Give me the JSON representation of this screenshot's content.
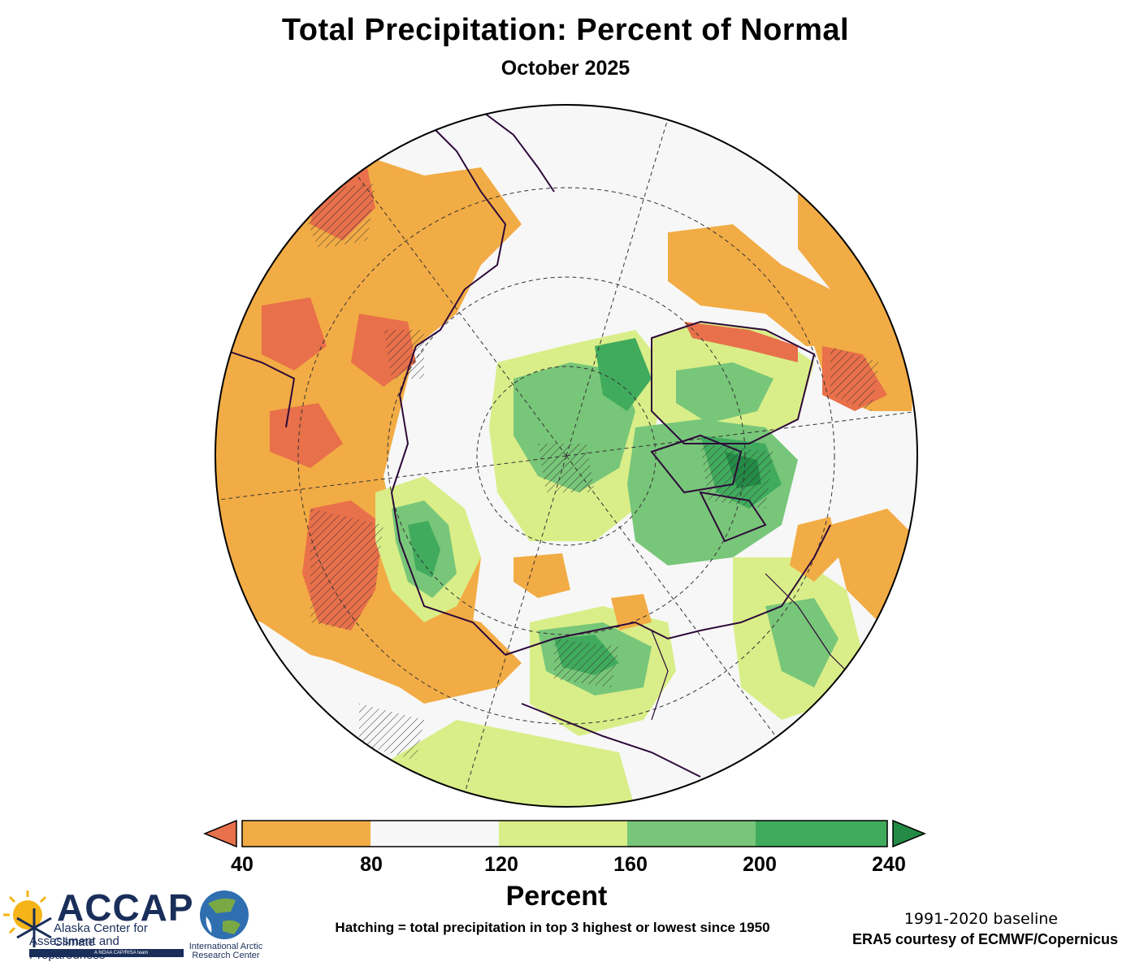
{
  "title": "Total Precipitation: Percent of Normal",
  "subtitle": "October 2025",
  "colorbar": {
    "ticks": [
      "40",
      "80",
      "120",
      "160",
      "200",
      "240"
    ],
    "label": "Percent",
    "bins": [
      {
        "range": "40-80",
        "color": "#f2ac45"
      },
      {
        "range": "80-120",
        "color": "#f7f7f7"
      },
      {
        "range": "120-160",
        "color": "#d9ee88"
      },
      {
        "range": "160-200",
        "color": "#78c679"
      },
      {
        "range": "200-240",
        "color": "#41ab5d"
      }
    ],
    "under_color": "#e8704a",
    "over_color": "#238b45"
  },
  "notes": {
    "hatching": "Hatching = total precipitation in top 3 highest or lowest since 1950",
    "baseline": "1991-2020 baseline",
    "source": "ERA5 courtesy of ECMWF/Copernicus"
  },
  "logos": {
    "accap_name": "ACCAP",
    "accap_line1": "Alaska Center for Climate",
    "accap_line2": "Assessment and Preparedness",
    "accap_tag": "A NOAA CAP/RISA team",
    "iarc_line1": "International Arctic",
    "iarc_line2": "Research Center"
  },
  "map": {
    "projection": "north-polar-stereographic",
    "regions": [
      {
        "name": "Europe / Scandinavia",
        "category": "40-80"
      },
      {
        "name": "Western Russia",
        "category": "40-80"
      },
      {
        "name": "Western Siberia",
        "category": "below-40"
      },
      {
        "name": "Central Siberia",
        "category": "160-200"
      },
      {
        "name": "North Atlantic",
        "category": "80-120"
      },
      {
        "name": "Greenland interior",
        "category": "120-160"
      },
      {
        "name": "Southeast Greenland",
        "category": "40-80"
      },
      {
        "name": "Canadian Archipelago",
        "category": "200-240"
      },
      {
        "name": "Central Arctic Ocean",
        "category": "160-200"
      },
      {
        "name": "Alaska interior",
        "category": "200-240"
      },
      {
        "name": "Eastern Canada",
        "category": "40-80"
      },
      {
        "name": "Western Canada",
        "category": "160-200"
      }
    ]
  }
}
